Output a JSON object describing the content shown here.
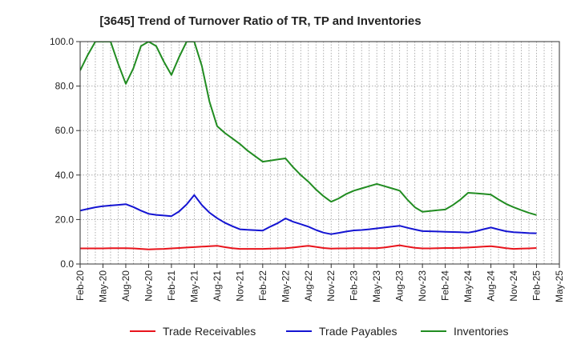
{
  "chart_data": {
    "type": "line",
    "title": "[3645]  Trend of Turnover Ratio of TR, TP and Inventories",
    "xlabel": "",
    "ylabel": "",
    "ylim": [
      0,
      100
    ],
    "y_ticks": [
      "0.0",
      "20.0",
      "40.0",
      "60.0",
      "80.0",
      "100.0"
    ],
    "x_tick_labels": [
      "Feb-20",
      "May-20",
      "Aug-20",
      "Nov-20",
      "Feb-21",
      "May-21",
      "Aug-21",
      "Nov-21",
      "Feb-22",
      "May-22",
      "Aug-22",
      "Nov-22",
      "Feb-23",
      "May-23",
      "Aug-23",
      "Nov-23",
      "Feb-24",
      "May-24",
      "Aug-24",
      "Nov-24",
      "Feb-25",
      "May-25"
    ],
    "x": [
      "Feb-20",
      "Mar-20",
      "Apr-20",
      "May-20",
      "Jun-20",
      "Jul-20",
      "Aug-20",
      "Sep-20",
      "Oct-20",
      "Nov-20",
      "Dec-20",
      "Jan-21",
      "Feb-21",
      "Mar-21",
      "Apr-21",
      "May-21",
      "Jun-21",
      "Jul-21",
      "Aug-21",
      "Sep-21",
      "Oct-21",
      "Nov-21",
      "Dec-21",
      "Jan-22",
      "Feb-22",
      "Mar-22",
      "Apr-22",
      "May-22",
      "Jun-22",
      "Jul-22",
      "Aug-22",
      "Sep-22",
      "Oct-22",
      "Nov-22",
      "Dec-22",
      "Jan-23",
      "Feb-23",
      "Mar-23",
      "Apr-23",
      "May-23",
      "Jun-23",
      "Jul-23",
      "Aug-23",
      "Sep-23",
      "Oct-23",
      "Nov-23",
      "Dec-23",
      "Jan-24",
      "Feb-24",
      "Mar-24",
      "Apr-24",
      "May-24",
      "Jun-24",
      "Jul-24",
      "Aug-24",
      "Sep-24",
      "Oct-24",
      "Nov-24",
      "Dec-24",
      "Jan-25",
      "Feb-25"
    ],
    "grid": "vertical-dotted-per-month, horizontal-dotted-per-20",
    "legend_placement": "bottom",
    "series": [
      {
        "name": "Trade Receivables",
        "color": "#e8141c",
        "values": [
          7.0,
          7.0,
          7.0,
          7.0,
          7.1,
          7.1,
          7.1,
          7.0,
          6.8,
          6.6,
          6.7,
          6.8,
          7.0,
          7.2,
          7.4,
          7.6,
          7.8,
          8.0,
          8.2,
          7.6,
          7.1,
          6.8,
          6.8,
          6.8,
          6.8,
          6.9,
          7.0,
          7.1,
          7.4,
          7.8,
          8.2,
          7.7,
          7.2,
          6.9,
          7.0,
          7.0,
          7.1,
          7.1,
          7.1,
          7.1,
          7.4,
          7.9,
          8.4,
          7.8,
          7.3,
          7.0,
          7.0,
          7.1,
          7.2,
          7.2,
          7.3,
          7.4,
          7.6,
          7.8,
          8.0,
          7.6,
          7.1,
          6.8,
          6.9,
          7.0,
          7.2
        ]
      },
      {
        "name": "Trade Payables",
        "color": "#1414d2",
        "values": [
          24.0,
          24.8,
          25.5,
          26.0,
          26.3,
          26.6,
          26.9,
          25.6,
          24.0,
          22.6,
          22.1,
          21.8,
          21.5,
          23.6,
          26.8,
          31.0,
          26.5,
          23.1,
          20.6,
          18.6,
          17.0,
          15.6,
          15.4,
          15.2,
          15.0,
          16.8,
          18.4,
          20.5,
          19.0,
          17.9,
          16.8,
          15.3,
          14.1,
          13.4,
          14.0,
          14.6,
          15.1,
          15.3,
          15.6,
          16.0,
          16.4,
          16.8,
          17.2,
          16.3,
          15.5,
          14.8,
          14.7,
          14.6,
          14.5,
          14.4,
          14.3,
          14.1,
          14.7,
          15.6,
          16.4,
          15.5,
          14.7,
          14.3,
          14.1,
          13.9,
          13.8
        ]
      },
      {
        "name": "Inventories",
        "color": "#218c21",
        "values": [
          87.0,
          94.0,
          108.0,
          116.0,
          101.0,
          90.0,
          81.0,
          88.0,
          98.0,
          106.0,
          98.0,
          91.0,
          85.0,
          93.0,
          104.0,
          107.0,
          89.0,
          73.0,
          62.0,
          59.0,
          56.5,
          54.0,
          51.0,
          48.5,
          46.0,
          46.5,
          47.0,
          47.5,
          43.5,
          40.0,
          37.0,
          33.5,
          30.5,
          28.0,
          29.5,
          31.5,
          33.0,
          34.0,
          35.0,
          36.0,
          35.0,
          34.0,
          33.0,
          29.0,
          25.5,
          23.5,
          23.8,
          24.2,
          24.5,
          26.5,
          29.0,
          32.0,
          31.8,
          31.5,
          31.2,
          29.0,
          27.0,
          25.5,
          24.2,
          23.0,
          22.0
        ]
      }
    ]
  }
}
